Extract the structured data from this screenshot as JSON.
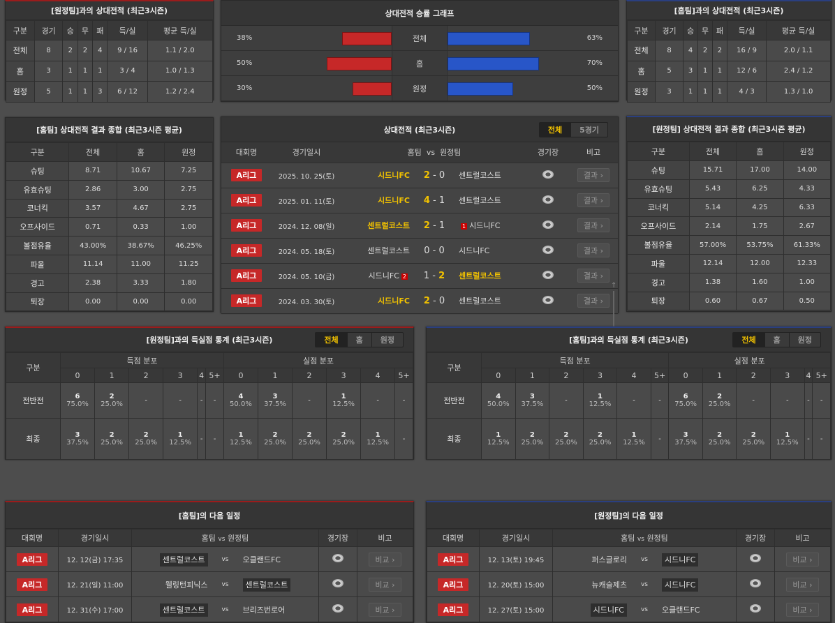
{
  "away_h2h": {
    "title": "[원정팀]과의 상대전적 (최근3시즌)",
    "headers": [
      "구분",
      "경기",
      "승",
      "무",
      "패",
      "득/실",
      "평균 득/실"
    ],
    "rows": [
      [
        "전체",
        "8",
        "2",
        "2",
        "4",
        "9 / 16",
        "1.1 / 2.0"
      ],
      [
        "홈",
        "3",
        "1",
        "1",
        "1",
        "3 / 4",
        "1.0 / 1.3"
      ],
      [
        "원정",
        "5",
        "1",
        "1",
        "3",
        "6 / 12",
        "1.2 / 2.4"
      ]
    ]
  },
  "graph": {
    "title": "상대전적 승률 그래프",
    "rows": [
      {
        "label": "전체",
        "away_pct": 38,
        "home_pct": 63,
        "away_text": "38%",
        "home_text": "63%"
      },
      {
        "label": "홈",
        "away_pct": 50,
        "home_pct": 70,
        "away_text": "50%",
        "home_text": "70%"
      },
      {
        "label": "원정",
        "away_pct": 30,
        "home_pct": 50,
        "away_text": "30%",
        "home_text": "50%"
      }
    ]
  },
  "home_h2h": {
    "title": "[홈팀]과의 상대전적 (최근3시즌)",
    "headers": [
      "구분",
      "경기",
      "승",
      "무",
      "패",
      "득/실",
      "평균 득/실"
    ],
    "rows": [
      [
        "전체",
        "8",
        "4",
        "2",
        "2",
        "16 / 9",
        "2.0 / 1.1"
      ],
      [
        "홈",
        "5",
        "3",
        "1",
        "1",
        "12 / 6",
        "2.4 / 1.2"
      ],
      [
        "원정",
        "3",
        "1",
        "1",
        "1",
        "4 / 3",
        "1.3 / 1.0"
      ]
    ]
  },
  "home_summary": {
    "title": "[홈팀] 상대전적 결과 종합 (최근3시즌 평균)",
    "headers": [
      "구분",
      "전체",
      "홈",
      "원정"
    ],
    "rows": [
      [
        "슈팅",
        "8.71",
        "10.67",
        "7.25"
      ],
      [
        "유효슈팅",
        "2.86",
        "3.00",
        "2.75"
      ],
      [
        "코너킥",
        "3.57",
        "4.67",
        "2.75"
      ],
      [
        "오프사이드",
        "0.71",
        "0.33",
        "1.00"
      ],
      [
        "볼점유율",
        "43.00%",
        "38.67%",
        "46.25%"
      ],
      [
        "파울",
        "11.14",
        "11.00",
        "11.25"
      ],
      [
        "경고",
        "2.38",
        "3.33",
        "1.80"
      ],
      [
        "퇴장",
        "0.00",
        "0.00",
        "0.00"
      ]
    ]
  },
  "away_summary": {
    "title": "[원정팀] 상대전적 결과 종합 (최근3시즌 평균)",
    "headers": [
      "구분",
      "전체",
      "홈",
      "원정"
    ],
    "rows": [
      [
        "슈팅",
        "15.71",
        "17.00",
        "14.00"
      ],
      [
        "유효슈팅",
        "5.43",
        "6.25",
        "4.33"
      ],
      [
        "코너킥",
        "5.14",
        "4.25",
        "6.33"
      ],
      [
        "오프사이드",
        "2.14",
        "1.75",
        "2.67"
      ],
      [
        "볼점유율",
        "57.00%",
        "53.75%",
        "61.33%"
      ],
      [
        "파울",
        "12.14",
        "12.00",
        "12.33"
      ],
      [
        "경고",
        "1.38",
        "1.60",
        "1.00"
      ],
      [
        "퇴장",
        "0.60",
        "0.67",
        "0.50"
      ]
    ]
  },
  "h2h_list": {
    "title": "상대전적 (최근3시즌)",
    "tabs": [
      "전체",
      "5경기"
    ],
    "headers": {
      "league": "대회명",
      "date": "경기일시",
      "home": "홈팀",
      "vs": "vs",
      "away": "원정팀",
      "stadium": "경기장",
      "note": "비고"
    },
    "matches": [
      {
        "league": "A리그",
        "date": "2025. 10. 25(토)",
        "home": "시드니FC",
        "hs": "2",
        "as": "0",
        "away": "센트럴코스트",
        "winner": "home",
        "home_red": "",
        "away_red": "",
        "button": "결과"
      },
      {
        "league": "A리그",
        "date": "2025. 01. 11(토)",
        "home": "시드니FC",
        "hs": "4",
        "as": "1",
        "away": "센트럴코스트",
        "winner": "home",
        "home_red": "",
        "away_red": "",
        "button": "결과"
      },
      {
        "league": "A리그",
        "date": "2024. 12. 08(일)",
        "home": "센트럴코스트",
        "hs": "2",
        "as": "1",
        "away": "시드니FC",
        "winner": "home",
        "home_red": "",
        "away_red": "1",
        "button": "결과"
      },
      {
        "league": "A리그",
        "date": "2024. 05. 18(토)",
        "home": "센트럴코스트",
        "hs": "0",
        "as": "0",
        "away": "시드니FC",
        "winner": "draw",
        "home_red": "",
        "away_red": "",
        "button": "결과"
      },
      {
        "league": "A리그",
        "date": "2024. 05. 10(금)",
        "home": "시드니FC",
        "hs": "1",
        "as": "2",
        "away": "센트럴코스트",
        "winner": "away",
        "home_red": "2",
        "away_red": "",
        "button": "결과"
      },
      {
        "league": "A리그",
        "date": "2024. 03. 30(토)",
        "home": "시드니FC",
        "hs": "2",
        "as": "0",
        "away": "센트럴코스트",
        "winner": "home",
        "home_red": "",
        "away_red": "",
        "button": "결과"
      }
    ]
  },
  "goals_left": {
    "title": "[원정팀]과의 득실점 통계 (최근3시즌)",
    "tabs": [
      "전체",
      "홈",
      "원정"
    ],
    "label_header": "구분",
    "group_headers": [
      "득점 분포",
      "실점 분포"
    ],
    "cols": [
      "0",
      "1",
      "2",
      "3",
      "4",
      "5+",
      "0",
      "1",
      "2",
      "3",
      "4",
      "5+"
    ],
    "rows": [
      {
        "label": "전반전",
        "cells": [
          {
            "n": "6",
            "p": "75.0%"
          },
          {
            "n": "2",
            "p": "25.0%"
          },
          {
            "n": "-"
          },
          {
            "n": "-"
          },
          {
            "n": "-"
          },
          {
            "n": "-"
          },
          {
            "n": "4",
            "p": "50.0%"
          },
          {
            "n": "3",
            "p": "37.5%"
          },
          {
            "n": "-"
          },
          {
            "n": "1",
            "p": "12.5%"
          },
          {
            "n": "-"
          },
          {
            "n": "-"
          }
        ]
      },
      {
        "label": "최종",
        "cells": [
          {
            "n": "3",
            "p": "37.5%"
          },
          {
            "n": "2",
            "p": "25.0%"
          },
          {
            "n": "2",
            "p": "25.0%"
          },
          {
            "n": "1",
            "p": "12.5%"
          },
          {
            "n": "-"
          },
          {
            "n": "-"
          },
          {
            "n": "1",
            "p": "12.5%"
          },
          {
            "n": "2",
            "p": "25.0%"
          },
          {
            "n": "2",
            "p": "25.0%"
          },
          {
            "n": "2",
            "p": "25.0%"
          },
          {
            "n": "1",
            "p": "12.5%"
          },
          {
            "n": "-"
          }
        ]
      }
    ]
  },
  "goals_right": {
    "title": "[홈팀]과의 득실점 통계 (최근3시즌)",
    "tabs": [
      "전체",
      "홈",
      "원정"
    ],
    "label_header": "구분",
    "group_headers": [
      "득점 분포",
      "실점 분포"
    ],
    "cols": [
      "0",
      "1",
      "2",
      "3",
      "4",
      "5+",
      "0",
      "1",
      "2",
      "3",
      "4",
      "5+"
    ],
    "rows": [
      {
        "label": "전반전",
        "cells": [
          {
            "n": "4",
            "p": "50.0%"
          },
          {
            "n": "3",
            "p": "37.5%"
          },
          {
            "n": "-"
          },
          {
            "n": "1",
            "p": "12.5%"
          },
          {
            "n": "-"
          },
          {
            "n": "-"
          },
          {
            "n": "6",
            "p": "75.0%"
          },
          {
            "n": "2",
            "p": "25.0%"
          },
          {
            "n": "-"
          },
          {
            "n": "-"
          },
          {
            "n": "-"
          },
          {
            "n": "-"
          }
        ]
      },
      {
        "label": "최종",
        "cells": [
          {
            "n": "1",
            "p": "12.5%"
          },
          {
            "n": "2",
            "p": "25.0%"
          },
          {
            "n": "2",
            "p": "25.0%"
          },
          {
            "n": "2",
            "p": "25.0%"
          },
          {
            "n": "1",
            "p": "12.5%"
          },
          {
            "n": "-"
          },
          {
            "n": "3",
            "p": "37.5%"
          },
          {
            "n": "2",
            "p": "25.0%"
          },
          {
            "n": "2",
            "p": "25.0%"
          },
          {
            "n": "1",
            "p": "12.5%"
          },
          {
            "n": "-"
          },
          {
            "n": "-"
          }
        ]
      }
    ]
  },
  "sched_left": {
    "title": "[홈팀]의 다음 일정",
    "headers": {
      "league": "대회명",
      "date": "경기일시",
      "home": "홈팀",
      "vs": "vs",
      "away": "원정팀",
      "stadium": "경기장",
      "note": "비고"
    },
    "matches": [
      {
        "league": "A리그",
        "date": "12. 12(금) 17:35",
        "home": "센트럴코스트",
        "vs": "vs",
        "away": "오클랜드FC",
        "hl": "home",
        "button": "비교"
      },
      {
        "league": "A리그",
        "date": "12. 21(일) 11:00",
        "home": "웰링턴피닉스",
        "vs": "vs",
        "away": "센트럴코스트",
        "hl": "away",
        "button": "비교"
      },
      {
        "league": "A리그",
        "date": "12. 31(수) 17:00",
        "home": "센트럴코스트",
        "vs": "vs",
        "away": "브리즈번로어",
        "hl": "home",
        "button": "비교"
      }
    ]
  },
  "sched_right": {
    "title": "[원정팀]의 다음 일정",
    "headers": {
      "league": "대회명",
      "date": "경기일시",
      "home": "홈팀",
      "vs": "vs",
      "away": "원정팀",
      "stadium": "경기장",
      "note": "비고"
    },
    "matches": [
      {
        "league": "A리그",
        "date": "12. 13(토) 19:45",
        "home": "퍼스글로리",
        "vs": "vs",
        "away": "시드니FC",
        "hl": "away",
        "button": "비교"
      },
      {
        "league": "A리그",
        "date": "12. 20(토) 15:00",
        "home": "뉴캐슬제츠",
        "vs": "vs",
        "away": "시드니FC",
        "hl": "away",
        "button": "비교"
      },
      {
        "league": "A리그",
        "date": "12. 27(토) 15:00",
        "home": "시드니FC",
        "vs": "vs",
        "away": "오클랜드FC",
        "hl": "home",
        "button": "비교"
      }
    ]
  }
}
